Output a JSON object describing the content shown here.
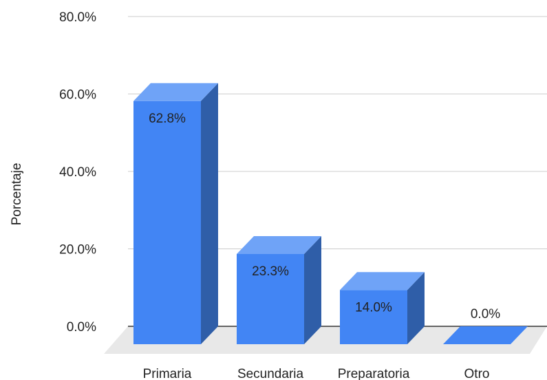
{
  "chart_data": {
    "type": "bar",
    "style": "3d",
    "categories": [
      "Primaria",
      "Secundaria",
      "Preparatoria",
      "Otro"
    ],
    "values": [
      62.8,
      23.3,
      14.0,
      0.0
    ],
    "value_labels": [
      "62.8%",
      "23.3%",
      "14.0%",
      "0.0%"
    ],
    "ylabel": "Porcentaje",
    "ylim": [
      0,
      80
    ],
    "yticks": [
      0,
      20,
      40,
      60,
      80
    ],
    "ytick_labels": [
      "0.0%",
      "20.0%",
      "40.0%",
      "60.0%",
      "80.0%"
    ],
    "grid": true,
    "legend": "none",
    "colors": {
      "bar_front": "#4285f4",
      "bar_top": "#6fa3f7",
      "bar_side": "#2f5ea8",
      "floor": "#e8e8e8",
      "grid": "#cccccc",
      "baseline": "#333333"
    }
  }
}
